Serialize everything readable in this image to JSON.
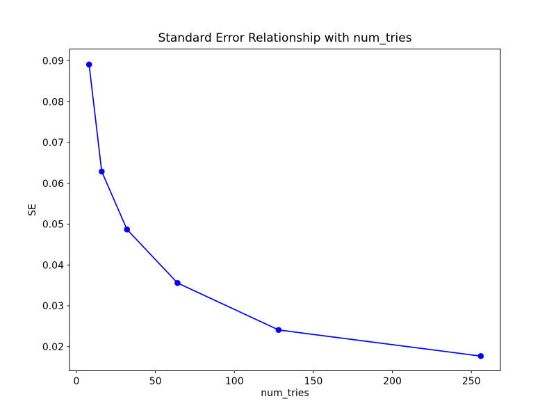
{
  "figure": {
    "background_color": "#ffffff",
    "text_color": "#000000",
    "axes_edge_color": "#000000"
  },
  "chart_data": {
    "type": "line",
    "title": "Standard Error Relationship with num_tries",
    "xlabel": "num_tries",
    "ylabel": "SE",
    "x": [
      8,
      16,
      32,
      64,
      128,
      256
    ],
    "y": [
      0.0891,
      0.0629,
      0.0487,
      0.0356,
      0.0241,
      0.0177
    ],
    "xlim": [
      -4.4,
      268.4
    ],
    "ylim": [
      0.0141,
      0.0929
    ],
    "xticks": [
      0,
      50,
      100,
      150,
      200,
      250
    ],
    "yticks": [
      0.02,
      0.03,
      0.04,
      0.05,
      0.06,
      0.07,
      0.08,
      0.09
    ],
    "ytick_decimals": 2,
    "line_color": "#0000ff",
    "marker_color": "#0000ff",
    "marker": "o",
    "grid": false,
    "legend_position": "none"
  }
}
